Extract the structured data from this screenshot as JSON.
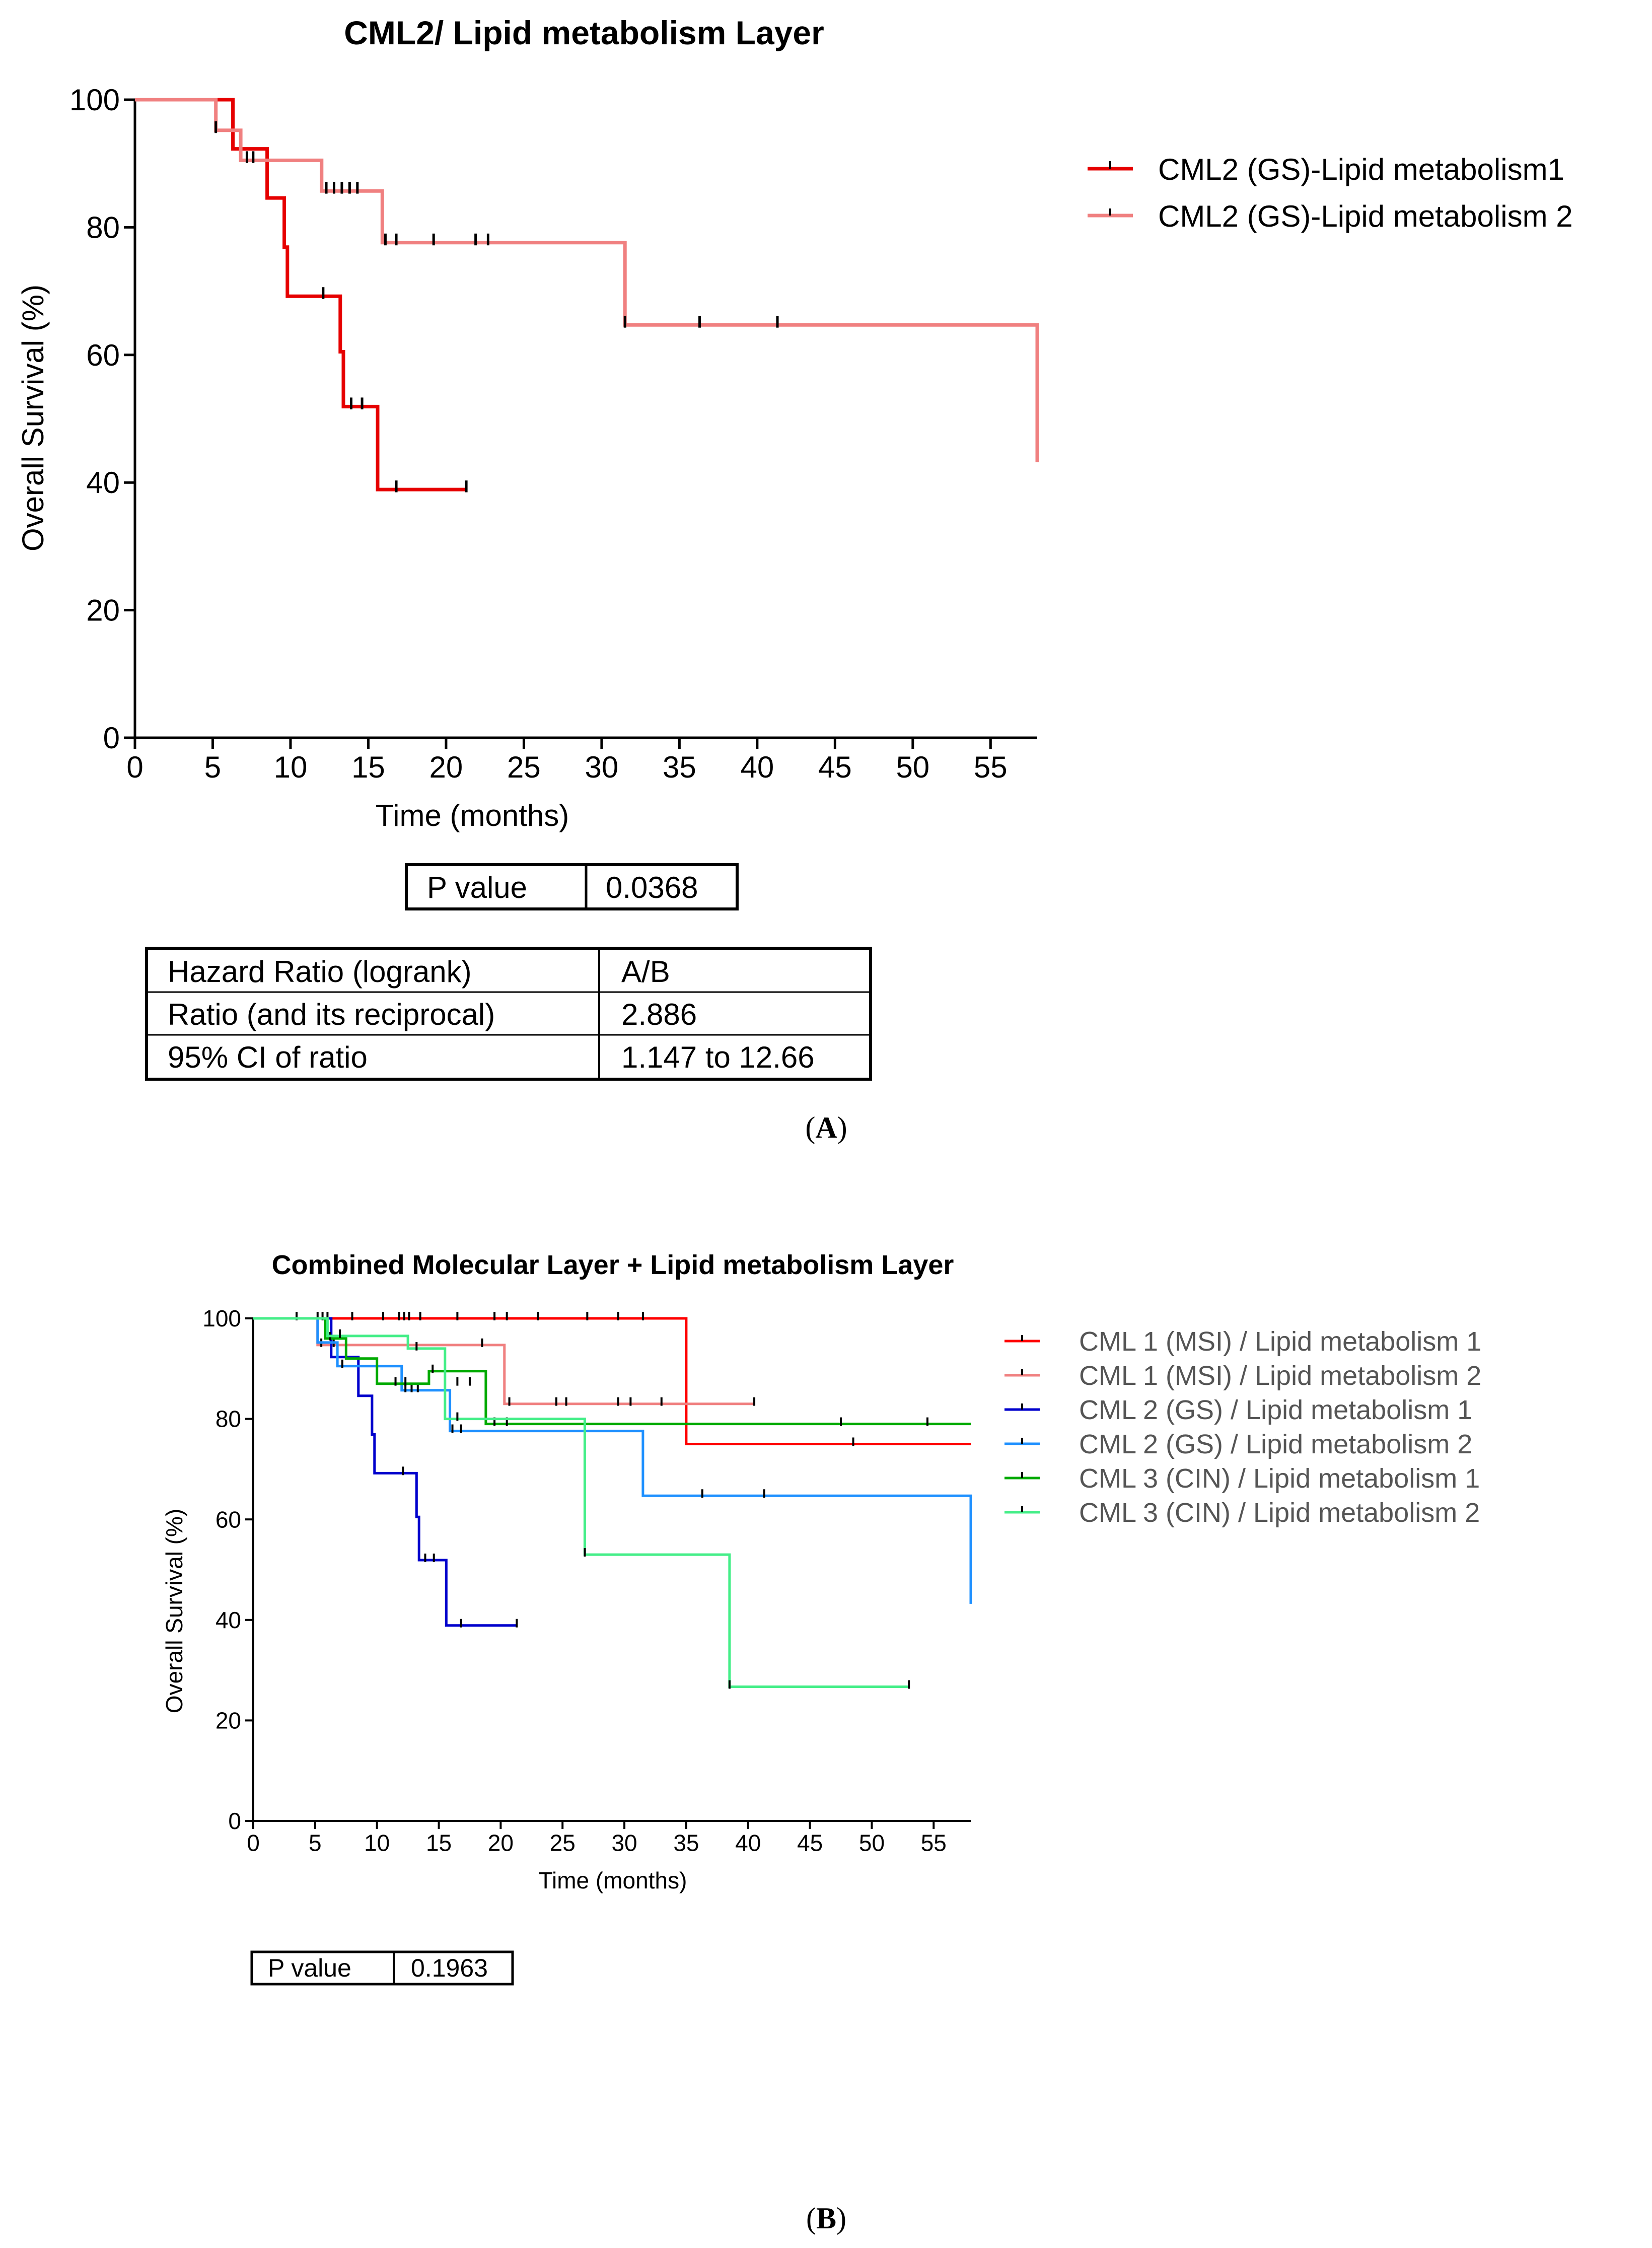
{
  "chart_data": [
    {
      "type": "line",
      "subtype": "kaplan-meier",
      "title": "CML2/ Lipid metabolism Layer",
      "xlabel": "Time (months)",
      "ylabel": "Overall Survival (%)",
      "xlim": [
        0,
        58
      ],
      "ylim": [
        0,
        100
      ],
      "xticks": [
        0,
        5,
        10,
        15,
        20,
        25,
        30,
        35,
        40,
        45,
        50,
        55
      ],
      "yticks": [
        0,
        20,
        40,
        60,
        80,
        100
      ],
      "legend_position": "top-right",
      "series": [
        {
          "name": "CML2 (GS)-Lipid metabolism1",
          "color": "#e60000",
          "steps": [
            [
              0,
              100
            ],
            [
              6.3,
              100
            ],
            [
              6.3,
              92.3
            ],
            [
              8.5,
              92.3
            ],
            [
              8.5,
              84.6
            ],
            [
              9.6,
              84.6
            ],
            [
              9.6,
              76.9
            ],
            [
              9.8,
              76.9
            ],
            [
              9.8,
              69.2
            ],
            [
              13.2,
              69.2
            ],
            [
              13.2,
              60.5
            ],
            [
              13.4,
              60.5
            ],
            [
              13.4,
              51.9
            ],
            [
              15.6,
              51.9
            ],
            [
              15.6,
              38.9
            ],
            [
              21.3,
              38.9
            ]
          ],
          "censored": [
            [
              12.1,
              69.2
            ],
            [
              13.9,
              51.9
            ],
            [
              14.6,
              51.9
            ],
            [
              16.8,
              38.9
            ],
            [
              21.3,
              38.9
            ]
          ]
        },
        {
          "name": "CML2 (GS)-Lipid metabolism 2",
          "color": "#f08080",
          "steps": [
            [
              0,
              100
            ],
            [
              5.2,
              100
            ],
            [
              5.2,
              95.2
            ],
            [
              6.8,
              95.2
            ],
            [
              6.8,
              90.5
            ],
            [
              12.0,
              90.5
            ],
            [
              12.0,
              85.7
            ],
            [
              15.9,
              85.7
            ],
            [
              15.9,
              77.6
            ],
            [
              31.5,
              77.6
            ],
            [
              31.5,
              64.7
            ],
            [
              58.0,
              64.7
            ],
            [
              58.0,
              43.2
            ]
          ],
          "censored": [
            [
              5.2,
              95.2
            ],
            [
              7.2,
              90.5
            ],
            [
              7.6,
              90.5
            ],
            [
              12.3,
              85.7
            ],
            [
              12.8,
              85.7
            ],
            [
              13.3,
              85.7
            ],
            [
              13.8,
              85.7
            ],
            [
              14.3,
              85.7
            ],
            [
              16.1,
              77.6
            ],
            [
              16.8,
              77.6
            ],
            [
              19.2,
              77.6
            ],
            [
              21.9,
              77.6
            ],
            [
              22.7,
              77.6
            ],
            [
              31.5,
              64.7
            ],
            [
              36.3,
              64.7
            ],
            [
              41.3,
              64.7
            ]
          ]
        }
      ],
      "stats": {
        "p_value_label": "P value",
        "p_value": "0.0368",
        "hazard_ratio_label": "Hazard Ratio (logrank)",
        "hazard_ratio_value": "A/B",
        "ratio_label": "Ratio (and its reciprocal)",
        "ratio_value": "2.886",
        "ci_label": "95% CI of ratio",
        "ci_value": "1.147 to 12.66"
      },
      "panel_label": "A"
    },
    {
      "type": "line",
      "subtype": "kaplan-meier",
      "title": "Combined Molecular Layer + Lipid metabolism Layer",
      "xlabel": "Time (months)",
      "ylabel": "Overall Survival (%)",
      "xlim": [
        0,
        58
      ],
      "ylim": [
        0,
        100
      ],
      "xticks": [
        0,
        5,
        10,
        15,
        20,
        25,
        30,
        35,
        40,
        45,
        50,
        55
      ],
      "yticks": [
        0,
        20,
        40,
        60,
        80,
        100
      ],
      "legend_position": "top-right",
      "series": [
        {
          "name": "CML 1 (MSI) / Lipid metabolism 1",
          "color": "#ff0000",
          "steps": [
            [
              0,
              100
            ],
            [
              35,
              100
            ],
            [
              35,
              75
            ],
            [
              58,
              75
            ]
          ],
          "censored": [
            [
              3.5,
              100
            ],
            [
              5.2,
              100
            ],
            [
              5.6,
              100
            ],
            [
              6.0,
              100
            ],
            [
              8.0,
              100
            ],
            [
              10.5,
              100
            ],
            [
              11.8,
              100
            ],
            [
              12.2,
              100
            ],
            [
              12.6,
              100
            ],
            [
              13.5,
              100
            ],
            [
              16.5,
              100
            ],
            [
              19.5,
              100
            ],
            [
              20.5,
              100
            ],
            [
              23.0,
              100
            ],
            [
              27.0,
              100
            ],
            [
              29.5,
              100
            ],
            [
              31.5,
              100
            ],
            [
              48.5,
              75
            ]
          ]
        },
        {
          "name": "CML 1 (MSI) / Lipid metabolism 2",
          "color": "#f08080",
          "steps": [
            [
              0,
              100
            ],
            [
              5.2,
              100
            ],
            [
              5.2,
              94.7
            ],
            [
              20.3,
              94.7
            ],
            [
              20.3,
              83.0
            ],
            [
              40.5,
              83.0
            ]
          ],
          "censored": [
            [
              5.5,
              94.7
            ],
            [
              6.5,
              94.7
            ],
            [
              18.5,
              94.7
            ],
            [
              20.7,
              83.0
            ],
            [
              24.5,
              83.0
            ],
            [
              25.3,
              83.0
            ],
            [
              29.5,
              83.0
            ],
            [
              30.5,
              83.0
            ],
            [
              33.0,
              83.0
            ],
            [
              40.5,
              83.0
            ]
          ]
        },
        {
          "name": "CML 2 (GS) / Lipid metabolism 1",
          "color": "#0000cc",
          "steps": [
            [
              0,
              100
            ],
            [
              6.3,
              100
            ],
            [
              6.3,
              92.3
            ],
            [
              8.5,
              92.3
            ],
            [
              8.5,
              84.6
            ],
            [
              9.6,
              84.6
            ],
            [
              9.6,
              76.9
            ],
            [
              9.8,
              76.9
            ],
            [
              9.8,
              69.2
            ],
            [
              13.2,
              69.2
            ],
            [
              13.2,
              60.5
            ],
            [
              13.4,
              60.5
            ],
            [
              13.4,
              51.9
            ],
            [
              15.6,
              51.9
            ],
            [
              15.6,
              38.9
            ],
            [
              21.3,
              38.9
            ]
          ],
          "censored": [
            [
              12.1,
              69.2
            ],
            [
              13.9,
              51.9
            ],
            [
              14.6,
              51.9
            ],
            [
              16.8,
              38.9
            ],
            [
              21.3,
              38.9
            ]
          ]
        },
        {
          "name": "CML 2 (GS) / Lipid metabolism 2",
          "color": "#1e90ff",
          "steps": [
            [
              0,
              100
            ],
            [
              5.2,
              100
            ],
            [
              5.2,
              95.2
            ],
            [
              6.8,
              95.2
            ],
            [
              6.8,
              90.5
            ],
            [
              12.0,
              90.5
            ],
            [
              12.0,
              85.7
            ],
            [
              15.9,
              85.7
            ],
            [
              15.9,
              77.6
            ],
            [
              31.5,
              77.6
            ],
            [
              31.5,
              64.7
            ],
            [
              58.0,
              64.7
            ],
            [
              58.0,
              43.2
            ]
          ],
          "censored": [
            [
              7.2,
              90.5
            ],
            [
              12.3,
              85.7
            ],
            [
              12.8,
              85.7
            ],
            [
              13.3,
              85.7
            ],
            [
              16.1,
              77.6
            ],
            [
              16.8,
              77.6
            ],
            [
              36.3,
              64.7
            ],
            [
              41.3,
              64.7
            ]
          ]
        },
        {
          "name": "CML 3 (CIN) / Lipid metabolism 1",
          "color": "#00aa00",
          "steps": [
            [
              0,
              100
            ],
            [
              5.8,
              100
            ],
            [
              5.8,
              96.0
            ],
            [
              7.5,
              96.0
            ],
            [
              7.5,
              92.0
            ],
            [
              10.0,
              92.0
            ],
            [
              10.0,
              87.0
            ],
            [
              14.2,
              87.0
            ],
            [
              14.2,
              89.5
            ],
            [
              18.8,
              89.5
            ],
            [
              18.8,
              79.0
            ],
            [
              58.0,
              79.0
            ]
          ],
          "censored": [
            [
              6.2,
              96.0
            ],
            [
              11.5,
              87.0
            ],
            [
              12.3,
              87.0
            ],
            [
              14.5,
              89.5
            ],
            [
              16.5,
              87.0
            ],
            [
              17.5,
              87.0
            ],
            [
              19.5,
              79.0
            ],
            [
              20.5,
              79.0
            ],
            [
              47.5,
              79.0
            ],
            [
              54.5,
              79.0
            ]
          ]
        },
        {
          "name": "CML 3 (CIN) / Lipid metabolism 2",
          "color": "#44ee88",
          "steps": [
            [
              0,
              100
            ],
            [
              6.0,
              100
            ],
            [
              6.0,
              96.5
            ],
            [
              12.5,
              96.5
            ],
            [
              12.5,
              94.0
            ],
            [
              15.5,
              94.0
            ],
            [
              15.5,
              80.0
            ],
            [
              26.8,
              80.0
            ],
            [
              26.8,
              53.0
            ],
            [
              38.5,
              53.0
            ],
            [
              38.5,
              26.7
            ],
            [
              53.0,
              26.7
            ]
          ],
          "censored": [
            [
              7.0,
              96.5
            ],
            [
              13.2,
              94.0
            ],
            [
              16.5,
              80.0
            ],
            [
              26.8,
              53.0
            ],
            [
              38.5,
              26.7
            ],
            [
              53.0,
              26.7
            ]
          ]
        }
      ],
      "stats": {
        "p_value_label": "P value",
        "p_value": "0.1963"
      },
      "panel_label": "B"
    }
  ]
}
